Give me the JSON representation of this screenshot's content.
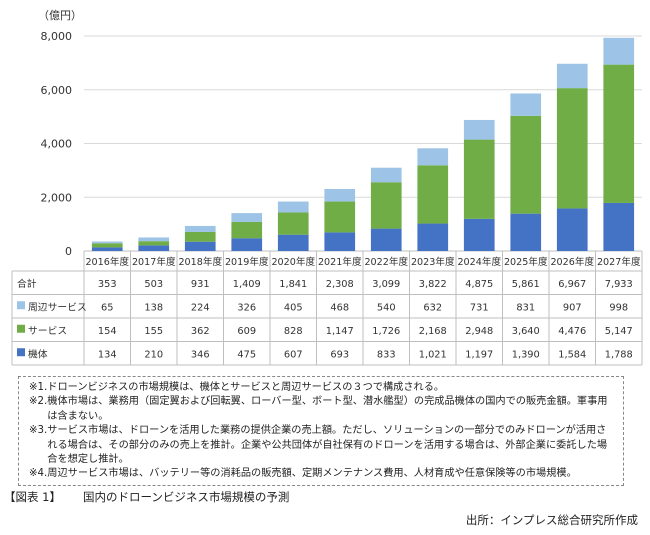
{
  "chart_data": {
    "type": "bar",
    "stacked": true,
    "unit_label": "（億円）",
    "categories": [
      "2016年度",
      "2017年度",
      "2018年度",
      "2019年度",
      "2020年度",
      "2021年度",
      "2022年度",
      "2023年度",
      "2024年度",
      "2025年度",
      "2026年度",
      "2027年度"
    ],
    "series": [
      {
        "name": "機体",
        "color": "#4472c4",
        "values": [
          134,
          210,
          346,
          475,
          607,
          693,
          833,
          1021,
          1197,
          1390,
          1584,
          1788
        ]
      },
      {
        "name": "サービス",
        "color": "#70ad47",
        "values": [
          154,
          155,
          362,
          609,
          828,
          1147,
          1726,
          2168,
          2948,
          3640,
          4476,
          5147
        ]
      },
      {
        "name": "周辺サービス",
        "color": "#9dc3e6",
        "values": [
          65,
          138,
          224,
          326,
          405,
          468,
          540,
          632,
          731,
          831,
          907,
          998
        ]
      }
    ],
    "total": {
      "name": "合計",
      "values": [
        353,
        503,
        931,
        1409,
        1841,
        2308,
        3099,
        3822,
        4875,
        5861,
        6967,
        7933
      ]
    },
    "ylim": [
      0,
      8000
    ],
    "yticks": [
      0,
      2000,
      4000,
      6000,
      8000
    ],
    "ytick_labels": [
      "0",
      "2,000",
      "4,000",
      "6,000",
      "8,000"
    ],
    "table": {
      "rows": [
        {
          "label": "合計",
          "cells": [
            "353",
            "503",
            "931",
            "1,409",
            "1,841",
            "2,308",
            "3,099",
            "3,822",
            "4,875",
            "5,861",
            "6,967",
            "7,933"
          ]
        },
        {
          "label": "周辺サービス",
          "color": "#9dc3e6",
          "cells": [
            "65",
            "138",
            "224",
            "326",
            "405",
            "468",
            "540",
            "632",
            "731",
            "831",
            "907",
            "998"
          ]
        },
        {
          "label": "サービス",
          "color": "#70ad47",
          "cells": [
            "154",
            "155",
            "362",
            "609",
            "828",
            "1,147",
            "1,726",
            "2,168",
            "2,948",
            "3,640",
            "4,476",
            "5,147"
          ]
        },
        {
          "label": "機体",
          "color": "#4472c4",
          "cells": [
            "134",
            "210",
            "346",
            "475",
            "607",
            "693",
            "833",
            "1,021",
            "1,197",
            "1,390",
            "1,584",
            "1,788"
          ]
        }
      ]
    },
    "grid": true
  },
  "notes": [
    {
      "mark": "※1.",
      "text": "ドローンビジネスの市場規模は、機体とサービスと周辺サービスの３つで構成される。"
    },
    {
      "mark": "※2.",
      "text": "機体市場は、業務用（固定翼および回転翼、ローバー型、ボート型、潜水艦型）の完成品機体の国内での販売金額。軍事用は含まない。"
    },
    {
      "mark": "※3.",
      "text": "サービス市場は、ドローンを活用した業務の提供企業の売上額。ただし、ソリューションの一部分でのみドローンが活用される場合は、その部分のみの売上を推計。企業や公共団体が自社保有のドローンを活用する場合は、外部企業に委託した場合を想定し推計。"
    },
    {
      "mark": "※4.",
      "text": "周辺サービス市場は、バッテリー等の消耗品の販売額、定期メンテナンス費用、人材育成や任意保険等の市場規模。"
    }
  ],
  "caption": {
    "label": "【図表 1】",
    "text": "国内のドローンビジネス市場規模の予測"
  },
  "source": "出所：インプレス総合研究所作成"
}
